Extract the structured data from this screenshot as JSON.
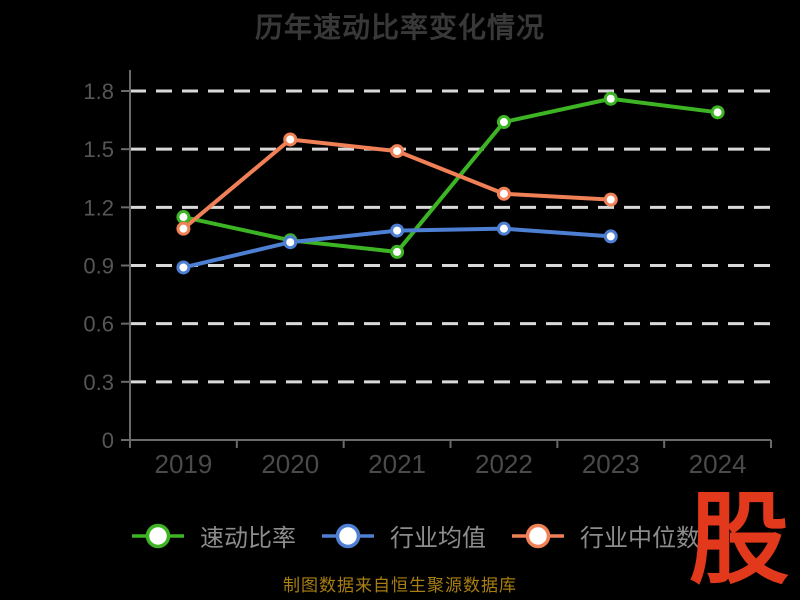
{
  "page": {
    "background": "#000000"
  },
  "header": {
    "title": "历年速动比率变化情况"
  },
  "footer": {
    "text": "制图数据来自恒生聚源数据库",
    "color": "#a97e12"
  },
  "logo": {
    "text": "股",
    "color": "#e2391c"
  },
  "chart_data": {
    "type": "line",
    "title": "历年速动比率变化情况",
    "title_color": "#383838",
    "categories": [
      "2019",
      "2020",
      "2021",
      "2022",
      "2023",
      "2024"
    ],
    "series": [
      {
        "name": "速动比率",
        "color": "#3db423",
        "values": [
          1.15,
          1.03,
          0.97,
          1.64,
          1.76,
          1.69
        ]
      },
      {
        "name": "行业均值",
        "color": "#4d7fd2",
        "values": [
          0.89,
          1.02,
          1.08,
          1.09,
          1.05,
          null
        ]
      },
      {
        "name": "行业中位数",
        "color": "#f08055",
        "values": [
          1.09,
          1.55,
          1.49,
          1.27,
          1.24,
          null
        ]
      }
    ],
    "xlabel": "",
    "ylabel": "",
    "ylim": [
      0,
      1.8
    ],
    "yticks": [
      0,
      0.3,
      0.6,
      0.9,
      1.2,
      1.5,
      1.8
    ],
    "grid": "dashed-horizontal",
    "grid_color": "#d9d9d9",
    "axis_color": "#6a6a6a",
    "ytick_label_color": "#565656",
    "xtick_label_color": "#4a4a4a",
    "legend_position": "bottom",
    "legend_text_color": "#8c8c8c",
    "marker_style": "circle-white-fill"
  }
}
